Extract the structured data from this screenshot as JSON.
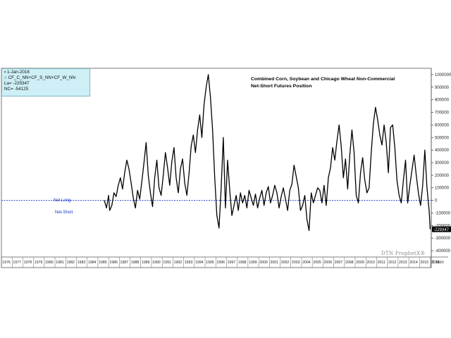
{
  "info_box": {
    "date": "1-Jan-2016",
    "symbol": "CF_C_NN+CF_S_NN+CF_W_NN",
    "last": "La= -229347",
    "net_change": "NC= -54125"
  },
  "labels": {
    "net_long": "Net Long",
    "net_short": "Net-Short",
    "watermark": "DTN ProphetX®",
    "period": "1 Mon",
    "last_value_tag": "-229347"
  },
  "colors": {
    "line": "#000000",
    "zero_line": "#1a36c8",
    "label_blue": "#1a36c8",
    "info_box_bg": "#cdeff5",
    "last_tag_bg": "#000000"
  },
  "chart_data": {
    "type": "line",
    "title": "Combined Corn, Soybean and Chicago Wheat Non-Commercial Net-Short Futures Position",
    "title_lines": [
      "Combined Corn, Soybean and Chicago Wheat Non-Commercial",
      "Net-Short Futures Position"
    ],
    "xlabel": "",
    "ylabel": "",
    "xlim": [
      1976,
      2016.1
    ],
    "ylim": [
      -450000,
      1050000
    ],
    "grid": false,
    "y_axis_side": "right",
    "y_ticks": [
      1000000,
      900000,
      800000,
      700000,
      600000,
      500000,
      400000,
      300000,
      200000,
      100000,
      0,
      -100000,
      -200000,
      -300000,
      -400000
    ],
    "y_tick_labels": [
      "1000000",
      "900000",
      "800000",
      "700000",
      "600000",
      "500000",
      "400000",
      "300000",
      "200000",
      "100000",
      "0",
      "-100000",
      "-200000",
      "-300000",
      "-400000"
    ],
    "x_tick_labels": [
      "1976",
      "1977",
      "1978",
      "1979",
      "1980",
      "1981",
      "1982",
      "1983",
      "1984",
      "1985",
      "1986",
      "1987",
      "1988",
      "1989",
      "1990",
      "1991",
      "1992",
      "1993",
      "1994",
      "1995",
      "1996",
      "1997",
      "1998",
      "1999",
      "2000",
      "2001",
      "2002",
      "2003",
      "2004",
      "2005",
      "2006",
      "2007",
      "2008",
      "2009",
      "2010",
      "2011",
      "2012",
      "2013",
      "2014",
      "2015",
      "2016"
    ],
    "reference_line": {
      "y": 0,
      "style": "dashed"
    },
    "series": [
      {
        "x": [
          1985.6,
          1985.8,
          1986.0,
          1986.1,
          1986.3,
          1986.5,
          1986.7,
          1986.9,
          1987.1,
          1987.3,
          1987.5,
          1987.7,
          1987.9,
          1988.1,
          1988.3,
          1988.5,
          1988.7,
          1988.9,
          1989.1,
          1989.3,
          1989.5,
          1989.7,
          1989.9,
          1990.1,
          1990.3,
          1990.5,
          1990.7,
          1990.9,
          1991.1,
          1991.3,
          1991.5,
          1991.7,
          1991.9,
          1992.1,
          1992.3,
          1992.5,
          1992.7,
          1992.9,
          1993.1,
          1993.3,
          1993.5,
          1993.7,
          1993.9,
          1994.1,
          1994.3,
          1994.5,
          1994.7,
          1994.9,
          1995.1,
          1995.3,
          1995.5,
          1995.7,
          1995.9,
          1996.1,
          1996.3,
          1996.5,
          1996.7,
          1996.9,
          1997.1,
          1997.3,
          1997.5,
          1997.7,
          1997.9,
          1998.1,
          1998.3,
          1998.5,
          1998.7,
          1998.9,
          1999.1,
          1999.3,
          1999.5,
          1999.7,
          1999.9,
          2000.1,
          2000.3,
          2000.5,
          2000.7,
          2000.9,
          2001.1,
          2001.3,
          2001.5,
          2001.7,
          2001.9,
          2002.1,
          2002.3,
          2002.5,
          2002.7,
          2002.9,
          2003.1,
          2003.3,
          2003.5,
          2003.7,
          2003.9,
          2004.1,
          2004.3,
          2004.5,
          2004.7,
          2004.9,
          2005.1,
          2005.3,
          2005.5,
          2005.7,
          2005.9,
          2006.1,
          2006.3,
          2006.5,
          2006.7,
          2006.9,
          2007.1,
          2007.3,
          2007.5,
          2007.7,
          2007.9,
          2008.1,
          2008.3,
          2008.5,
          2008.7,
          2008.9,
          2009.1,
          2009.3,
          2009.5,
          2009.7,
          2009.9,
          2010.1,
          2010.3,
          2010.5,
          2010.7,
          2010.9,
          2011.1,
          2011.3,
          2011.5,
          2011.7,
          2011.9,
          2012.1,
          2012.3,
          2012.5,
          2012.7,
          2012.9,
          2013.1,
          2013.3,
          2013.5,
          2013.7,
          2013.9,
          2014.1,
          2014.3,
          2014.5,
          2014.7,
          2014.9,
          2015.1,
          2015.3,
          2015.5,
          2015.7,
          2015.9,
          2016.0
        ],
        "values": [
          0,
          -60000,
          40000,
          -80000,
          -40000,
          60000,
          30000,
          120000,
          180000,
          90000,
          220000,
          320000,
          250000,
          140000,
          20000,
          -60000,
          80000,
          10000,
          150000,
          300000,
          460000,
          200000,
          60000,
          -50000,
          180000,
          320000,
          100000,
          40000,
          200000,
          380000,
          260000,
          120000,
          310000,
          420000,
          180000,
          60000,
          250000,
          330000,
          140000,
          40000,
          210000,
          430000,
          520000,
          380000,
          560000,
          680000,
          500000,
          760000,
          900000,
          1000000,
          820000,
          560000,
          180000,
          -120000,
          -220000,
          100000,
          500000,
          -60000,
          320000,
          80000,
          -120000,
          -40000,
          40000,
          -80000,
          60000,
          -20000,
          40000,
          -60000,
          80000,
          20000,
          -40000,
          50000,
          -60000,
          20000,
          80000,
          -40000,
          60000,
          110000,
          -20000,
          40000,
          120000,
          60000,
          -60000,
          30000,
          100000,
          10000,
          -80000,
          80000,
          130000,
          280000,
          190000,
          100000,
          -80000,
          -40000,
          40000,
          -150000,
          -240000,
          60000,
          -20000,
          40000,
          100000,
          80000,
          -20000,
          120000,
          -40000,
          180000,
          260000,
          420000,
          320000,
          470000,
          600000,
          430000,
          180000,
          330000,
          90000,
          360000,
          560000,
          380000,
          40000,
          -20000,
          220000,
          340000,
          160000,
          60000,
          100000,
          380000,
          610000,
          740000,
          640000,
          520000,
          440000,
          600000,
          460000,
          220000,
          580000,
          600000,
          420000,
          160000,
          40000,
          -20000,
          160000,
          320000,
          -20000,
          120000,
          240000,
          360000,
          200000,
          60000,
          -40000,
          120000,
          400000,
          100000,
          -80000,
          -229347
        ]
      }
    ]
  }
}
